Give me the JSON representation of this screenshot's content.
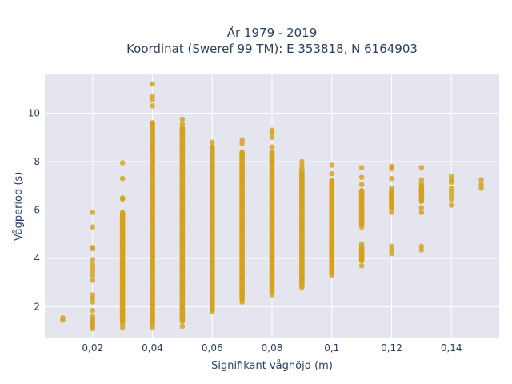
{
  "chart_data": {
    "type": "scatter",
    "title_line1": "År 1979 - 2019",
    "title_line2": "Koordinat (Sweref 99 TM): E 353818, N 6164903",
    "xlabel": "Signifikant våghöjd (m)",
    "ylabel": "Vågperiod (s)",
    "xlim": [
      0.004,
      0.156
    ],
    "ylim": [
      0.7,
      11.6
    ],
    "x_ticks": [
      {
        "value": 0.02,
        "label": "0,02"
      },
      {
        "value": 0.04,
        "label": "0,04"
      },
      {
        "value": 0.06,
        "label": "0,06"
      },
      {
        "value": 0.08,
        "label": "0,08"
      },
      {
        "value": 0.1,
        "label": "0,1"
      },
      {
        "value": 0.12,
        "label": "0,12"
      },
      {
        "value": 0.14,
        "label": "0,14"
      }
    ],
    "y_ticks": [
      {
        "value": 2,
        "label": "2"
      },
      {
        "value": 4,
        "label": "4"
      },
      {
        "value": 6,
        "label": "6"
      },
      {
        "value": 8,
        "label": "8"
      },
      {
        "value": 10,
        "label": "10"
      }
    ],
    "grid": true,
    "marker_color": "#d4a017",
    "plot_bg": "#e5e5f0",
    "series": [
      {
        "points": [
          {
            "x": 0.01,
            "y": 1.45
          },
          {
            "x": 0.01,
            "y": 1.55
          },
          {
            "x": 0.02,
            "y": 1.1
          },
          {
            "x": 0.02,
            "y": 1.2
          },
          {
            "x": 0.02,
            "y": 1.3
          },
          {
            "x": 0.02,
            "y": 1.4
          },
          {
            "x": 0.02,
            "y": 1.5
          },
          {
            "x": 0.02,
            "y": 1.6
          },
          {
            "x": 0.02,
            "y": 1.85
          },
          {
            "x": 0.02,
            "y": 2.2
          },
          {
            "x": 0.02,
            "y": 2.35
          },
          {
            "x": 0.02,
            "y": 2.5
          },
          {
            "x": 0.02,
            "y": 3.1
          },
          {
            "x": 0.02,
            "y": 3.3
          },
          {
            "x": 0.02,
            "y": 3.45
          },
          {
            "x": 0.02,
            "y": 3.6
          },
          {
            "x": 0.02,
            "y": 3.75
          },
          {
            "x": 0.02,
            "y": 3.95
          },
          {
            "x": 0.02,
            "y": 4.4
          },
          {
            "x": 0.02,
            "y": 4.45
          },
          {
            "x": 0.02,
            "y": 5.3
          },
          {
            "x": 0.02,
            "y": 5.9
          },
          {
            "x": 0.03,
            "y": 1.15
          },
          {
            "x": 0.03,
            "y": 1.3
          },
          {
            "x": 0.03,
            "y": 1.5
          },
          {
            "x": 0.03,
            "y": 1.8
          },
          {
            "x": 0.03,
            "y": 2.2
          },
          {
            "x": 0.03,
            "y": 2.6
          },
          {
            "x": 0.03,
            "y": 3.0
          },
          {
            "x": 0.03,
            "y": 3.4
          },
          {
            "x": 0.03,
            "y": 3.8
          },
          {
            "x": 0.03,
            "y": 4.2
          },
          {
            "x": 0.03,
            "y": 4.6
          },
          {
            "x": 0.03,
            "y": 5.0
          },
          {
            "x": 0.03,
            "y": 5.4
          },
          {
            "x": 0.03,
            "y": 5.8
          },
          {
            "x": 0.03,
            "y": 6.45
          },
          {
            "x": 0.03,
            "y": 6.5
          },
          {
            "x": 0.03,
            "y": 7.3
          },
          {
            "x": 0.03,
            "y": 7.95
          },
          {
            "x": 0.04,
            "y": 1.15
          },
          {
            "x": 0.04,
            "y": 1.6
          },
          {
            "x": 0.04,
            "y": 2.1
          },
          {
            "x": 0.04,
            "y": 2.6
          },
          {
            "x": 0.04,
            "y": 3.1
          },
          {
            "x": 0.04,
            "y": 3.6
          },
          {
            "x": 0.04,
            "y": 4.1
          },
          {
            "x": 0.04,
            "y": 4.6
          },
          {
            "x": 0.04,
            "y": 5.1
          },
          {
            "x": 0.04,
            "y": 5.6
          },
          {
            "x": 0.04,
            "y": 6.1
          },
          {
            "x": 0.04,
            "y": 6.6
          },
          {
            "x": 0.04,
            "y": 7.1
          },
          {
            "x": 0.04,
            "y": 7.6
          },
          {
            "x": 0.04,
            "y": 8.1
          },
          {
            "x": 0.04,
            "y": 8.6
          },
          {
            "x": 0.04,
            "y": 9.1
          },
          {
            "x": 0.04,
            "y": 9.6
          },
          {
            "x": 0.04,
            "y": 10.3
          },
          {
            "x": 0.04,
            "y": 10.55
          },
          {
            "x": 0.04,
            "y": 10.7
          },
          {
            "x": 0.04,
            "y": 11.2
          },
          {
            "x": 0.05,
            "y": 1.2
          },
          {
            "x": 0.05,
            "y": 1.5
          },
          {
            "x": 0.05,
            "y": 2.0
          },
          {
            "x": 0.05,
            "y": 2.5
          },
          {
            "x": 0.05,
            "y": 3.0
          },
          {
            "x": 0.05,
            "y": 3.5
          },
          {
            "x": 0.05,
            "y": 4.0
          },
          {
            "x": 0.05,
            "y": 4.5
          },
          {
            "x": 0.05,
            "y": 5.0
          },
          {
            "x": 0.05,
            "y": 5.5
          },
          {
            "x": 0.05,
            "y": 6.0
          },
          {
            "x": 0.05,
            "y": 6.5
          },
          {
            "x": 0.05,
            "y": 7.0
          },
          {
            "x": 0.05,
            "y": 7.5
          },
          {
            "x": 0.05,
            "y": 8.0
          },
          {
            "x": 0.05,
            "y": 8.6
          },
          {
            "x": 0.05,
            "y": 9.2
          },
          {
            "x": 0.05,
            "y": 9.55
          },
          {
            "x": 0.05,
            "y": 9.75
          },
          {
            "x": 0.06,
            "y": 1.8
          },
          {
            "x": 0.06,
            "y": 2.3
          },
          {
            "x": 0.06,
            "y": 2.8
          },
          {
            "x": 0.06,
            "y": 3.3
          },
          {
            "x": 0.06,
            "y": 3.8
          },
          {
            "x": 0.06,
            "y": 4.3
          },
          {
            "x": 0.06,
            "y": 4.8
          },
          {
            "x": 0.06,
            "y": 5.3
          },
          {
            "x": 0.06,
            "y": 5.8
          },
          {
            "x": 0.06,
            "y": 6.3
          },
          {
            "x": 0.06,
            "y": 6.8
          },
          {
            "x": 0.06,
            "y": 7.3
          },
          {
            "x": 0.06,
            "y": 7.8
          },
          {
            "x": 0.06,
            "y": 8.2
          },
          {
            "x": 0.06,
            "y": 8.6
          },
          {
            "x": 0.06,
            "y": 8.8
          },
          {
            "x": 0.07,
            "y": 2.2
          },
          {
            "x": 0.07,
            "y": 2.7
          },
          {
            "x": 0.07,
            "y": 3.2
          },
          {
            "x": 0.07,
            "y": 3.7
          },
          {
            "x": 0.07,
            "y": 4.2
          },
          {
            "x": 0.07,
            "y": 4.7
          },
          {
            "x": 0.07,
            "y": 5.2
          },
          {
            "x": 0.07,
            "y": 5.7
          },
          {
            "x": 0.07,
            "y": 6.2
          },
          {
            "x": 0.07,
            "y": 6.7
          },
          {
            "x": 0.07,
            "y": 7.2
          },
          {
            "x": 0.07,
            "y": 7.7
          },
          {
            "x": 0.07,
            "y": 8.2
          },
          {
            "x": 0.07,
            "y": 8.75
          },
          {
            "x": 0.07,
            "y": 8.9
          },
          {
            "x": 0.08,
            "y": 2.5
          },
          {
            "x": 0.08,
            "y": 3.0
          },
          {
            "x": 0.08,
            "y": 3.5
          },
          {
            "x": 0.08,
            "y": 4.0
          },
          {
            "x": 0.08,
            "y": 4.5
          },
          {
            "x": 0.08,
            "y": 5.0
          },
          {
            "x": 0.08,
            "y": 5.5
          },
          {
            "x": 0.08,
            "y": 6.0
          },
          {
            "x": 0.08,
            "y": 6.5
          },
          {
            "x": 0.08,
            "y": 7.0
          },
          {
            "x": 0.08,
            "y": 7.5
          },
          {
            "x": 0.08,
            "y": 8.0
          },
          {
            "x": 0.08,
            "y": 8.6
          },
          {
            "x": 0.08,
            "y": 9.0
          },
          {
            "x": 0.08,
            "y": 9.2
          },
          {
            "x": 0.08,
            "y": 9.3
          },
          {
            "x": 0.09,
            "y": 2.8
          },
          {
            "x": 0.09,
            "y": 3.2
          },
          {
            "x": 0.09,
            "y": 3.7
          },
          {
            "x": 0.09,
            "y": 4.2
          },
          {
            "x": 0.09,
            "y": 4.7
          },
          {
            "x": 0.09,
            "y": 5.2
          },
          {
            "x": 0.09,
            "y": 5.7
          },
          {
            "x": 0.09,
            "y": 6.2
          },
          {
            "x": 0.09,
            "y": 6.7
          },
          {
            "x": 0.09,
            "y": 7.1
          },
          {
            "x": 0.09,
            "y": 7.4
          },
          {
            "x": 0.09,
            "y": 7.7
          },
          {
            "x": 0.09,
            "y": 7.85
          },
          {
            "x": 0.09,
            "y": 8.0
          },
          {
            "x": 0.1,
            "y": 3.3
          },
          {
            "x": 0.1,
            "y": 3.6
          },
          {
            "x": 0.1,
            "y": 3.9
          },
          {
            "x": 0.1,
            "y": 4.2
          },
          {
            "x": 0.1,
            "y": 4.4
          },
          {
            "x": 0.1,
            "y": 4.8
          },
          {
            "x": 0.1,
            "y": 5.2
          },
          {
            "x": 0.1,
            "y": 5.6
          },
          {
            "x": 0.1,
            "y": 6.0
          },
          {
            "x": 0.1,
            "y": 6.4
          },
          {
            "x": 0.1,
            "y": 6.8
          },
          {
            "x": 0.1,
            "y": 7.2
          },
          {
            "x": 0.1,
            "y": 7.5
          },
          {
            "x": 0.1,
            "y": 7.85
          },
          {
            "x": 0.11,
            "y": 3.7
          },
          {
            "x": 0.11,
            "y": 4.0
          },
          {
            "x": 0.11,
            "y": 4.3
          },
          {
            "x": 0.11,
            "y": 4.6
          },
          {
            "x": 0.11,
            "y": 5.3
          },
          {
            "x": 0.11,
            "y": 5.6
          },
          {
            "x": 0.11,
            "y": 5.9
          },
          {
            "x": 0.11,
            "y": 6.2
          },
          {
            "x": 0.11,
            "y": 6.5
          },
          {
            "x": 0.11,
            "y": 6.8
          },
          {
            "x": 0.11,
            "y": 7.05
          },
          {
            "x": 0.11,
            "y": 7.35
          },
          {
            "x": 0.11,
            "y": 7.75
          },
          {
            "x": 0.12,
            "y": 4.2
          },
          {
            "x": 0.12,
            "y": 4.35
          },
          {
            "x": 0.12,
            "y": 4.5
          },
          {
            "x": 0.12,
            "y": 5.9
          },
          {
            "x": 0.12,
            "y": 6.1
          },
          {
            "x": 0.12,
            "y": 6.3
          },
          {
            "x": 0.12,
            "y": 6.5
          },
          {
            "x": 0.12,
            "y": 6.7
          },
          {
            "x": 0.12,
            "y": 6.9
          },
          {
            "x": 0.12,
            "y": 7.3
          },
          {
            "x": 0.12,
            "y": 7.7
          },
          {
            "x": 0.12,
            "y": 7.8
          },
          {
            "x": 0.13,
            "y": 4.35
          },
          {
            "x": 0.13,
            "y": 4.5
          },
          {
            "x": 0.13,
            "y": 5.9
          },
          {
            "x": 0.13,
            "y": 6.1
          },
          {
            "x": 0.13,
            "y": 6.35
          },
          {
            "x": 0.13,
            "y": 6.6
          },
          {
            "x": 0.13,
            "y": 6.85
          },
          {
            "x": 0.13,
            "y": 7.1
          },
          {
            "x": 0.13,
            "y": 7.25
          },
          {
            "x": 0.13,
            "y": 7.75
          },
          {
            "x": 0.14,
            "y": 6.2
          },
          {
            "x": 0.14,
            "y": 6.45
          },
          {
            "x": 0.14,
            "y": 6.6
          },
          {
            "x": 0.14,
            "y": 6.75
          },
          {
            "x": 0.14,
            "y": 6.9
          },
          {
            "x": 0.14,
            "y": 7.15
          },
          {
            "x": 0.14,
            "y": 7.25
          },
          {
            "x": 0.14,
            "y": 7.4
          },
          {
            "x": 0.15,
            "y": 6.9
          },
          {
            "x": 0.15,
            "y": 7.05
          },
          {
            "x": 0.15,
            "y": 7.25
          }
        ],
        "bands": [
          {
            "x": 0.03,
            "y0": 1.3,
            "y1": 6.0
          },
          {
            "x": 0.04,
            "y0": 1.2,
            "y1": 9.7
          },
          {
            "x": 0.05,
            "y0": 1.3,
            "y1": 9.5
          },
          {
            "x": 0.06,
            "y0": 1.8,
            "y1": 8.7
          },
          {
            "x": 0.07,
            "y0": 2.2,
            "y1": 8.5
          },
          {
            "x": 0.08,
            "y0": 2.5,
            "y1": 8.5
          },
          {
            "x": 0.09,
            "y0": 2.8,
            "y1": 7.7
          },
          {
            "x": 0.1,
            "y0": 4.0,
            "y1": 7.3
          },
          {
            "x": 0.1,
            "y0": 3.3,
            "y1": 4.6
          },
          {
            "x": 0.11,
            "y0": 5.3,
            "y1": 6.9
          },
          {
            "x": 0.11,
            "y0": 3.8,
            "y1": 4.6
          },
          {
            "x": 0.12,
            "y0": 6.0,
            "y1": 6.9
          },
          {
            "x": 0.13,
            "y0": 6.3,
            "y1": 7.1
          }
        ]
      }
    ]
  }
}
